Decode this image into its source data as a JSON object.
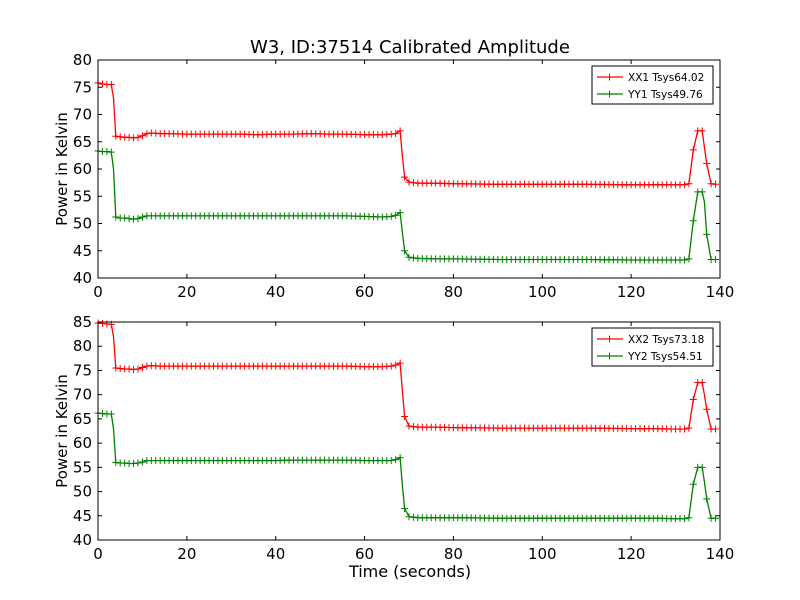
{
  "figure_title": "W3, ID:37514 Calibrated Amplitude",
  "xlabel_bottom": "Time (seconds)",
  "colors": {
    "xx": "#ff0000",
    "yy": "#008000"
  },
  "chart_data": [
    {
      "type": "line",
      "title": "W3, ID:37514 Calibrated Amplitude",
      "xlabel": "",
      "ylabel": "Power in Kelvin",
      "xlim": [
        0,
        140
      ],
      "ylim": [
        40,
        80
      ],
      "xticks": [
        0,
        20,
        40,
        60,
        80,
        100,
        120,
        140
      ],
      "yticks": [
        40,
        45,
        50,
        55,
        60,
        65,
        70,
        75,
        80
      ],
      "grid": false,
      "legend_position": "top-right",
      "series": [
        {
          "name": "XX1 Tsys64.02",
          "color": "#ff0000",
          "x": [
            0,
            1,
            2,
            3,
            3.5,
            4,
            5,
            6,
            7,
            8,
            9,
            10,
            11,
            12,
            14,
            16,
            20,
            24,
            28,
            32,
            36,
            40,
            44,
            48,
            52,
            56,
            60,
            64,
            66,
            67,
            68,
            68.5,
            69,
            70,
            72,
            76,
            80,
            90,
            100,
            110,
            120,
            125,
            130,
            132,
            133,
            134,
            135,
            136,
            136.5,
            137,
            138,
            139
          ],
          "y": [
            75.8,
            75.6,
            75.5,
            75.5,
            73,
            66,
            65.9,
            65.8,
            65.8,
            65.7,
            65.8,
            66.1,
            66.5,
            66.6,
            66.5,
            66.5,
            66.4,
            66.4,
            66.4,
            66.4,
            66.3,
            66.4,
            66.4,
            66.5,
            66.4,
            66.4,
            66.3,
            66.3,
            66.4,
            66.5,
            67,
            62.5,
            58.5,
            57.6,
            57.4,
            57.4,
            57.3,
            57.2,
            57.2,
            57.2,
            57.1,
            57.1,
            57.1,
            57.1,
            57.3,
            63.5,
            67,
            67,
            64,
            61,
            57.3,
            57.2
          ]
        },
        {
          "name": "YY1 Tsys49.76",
          "color": "#008000",
          "x": [
            0,
            1,
            2,
            3,
            3.5,
            4,
            5,
            6,
            7,
            8,
            9,
            10,
            11,
            12,
            14,
            16,
            20,
            24,
            28,
            32,
            36,
            40,
            44,
            48,
            52,
            56,
            60,
            64,
            66,
            67,
            68,
            68.5,
            69,
            70,
            72,
            76,
            80,
            90,
            100,
            110,
            120,
            125,
            130,
            132,
            133,
            134,
            135,
            136,
            136.5,
            137,
            138,
            139
          ],
          "y": [
            63.3,
            63.2,
            63.2,
            63.1,
            60,
            51.2,
            51,
            51,
            50.9,
            50.8,
            50.9,
            51.2,
            51.4,
            51.4,
            51.4,
            51.4,
            51.4,
            51.4,
            51.4,
            51.4,
            51.4,
            51.4,
            51.4,
            51.4,
            51.4,
            51.4,
            51.3,
            51.2,
            51.3,
            51.5,
            52,
            48.5,
            45,
            43.8,
            43.6,
            43.5,
            43.5,
            43.4,
            43.4,
            43.4,
            43.3,
            43.3,
            43.3,
            43.3,
            43.5,
            50.5,
            55.8,
            55.8,
            54,
            48,
            43.4,
            43.4
          ]
        }
      ]
    },
    {
      "type": "line",
      "title": "",
      "xlabel": "Time (seconds)",
      "ylabel": "Power in Kelvin",
      "xlim": [
        0,
        140
      ],
      "ylim": [
        40,
        85
      ],
      "xticks": [
        0,
        20,
        40,
        60,
        80,
        100,
        120,
        140
      ],
      "yticks": [
        40,
        45,
        50,
        55,
        60,
        65,
        70,
        75,
        80,
        85
      ],
      "grid": false,
      "legend_position": "top-right",
      "series": [
        {
          "name": "XX2 Tsys73.18",
          "color": "#ff0000",
          "x": [
            0,
            1,
            2,
            3,
            3.5,
            4,
            5,
            6,
            7,
            8,
            9,
            10,
            11,
            12,
            14,
            16,
            20,
            24,
            28,
            32,
            36,
            40,
            44,
            48,
            52,
            56,
            60,
            64,
            66,
            67,
            68,
            68.5,
            69,
            70,
            72,
            76,
            80,
            90,
            100,
            110,
            120,
            125,
            130,
            132,
            133,
            134,
            135,
            136,
            136.5,
            137,
            138,
            139
          ],
          "y": [
            84.8,
            84.7,
            84.6,
            84.5,
            82,
            75.5,
            75.4,
            75.3,
            75.3,
            75.2,
            75.3,
            75.6,
            75.9,
            76,
            75.9,
            75.9,
            75.9,
            75.9,
            75.9,
            75.9,
            75.9,
            75.9,
            75.9,
            75.9,
            75.9,
            75.9,
            75.8,
            75.8,
            75.9,
            76.1,
            76.5,
            71,
            65.5,
            63.5,
            63.3,
            63.3,
            63.2,
            63.1,
            63.1,
            63.1,
            63,
            63,
            62.9,
            62.9,
            63.1,
            69,
            72.5,
            72.5,
            70,
            67,
            62.9,
            62.9
          ]
        },
        {
          "name": "YY2 Tsys54.51",
          "color": "#008000",
          "x": [
            0,
            1,
            2,
            3,
            3.5,
            4,
            5,
            6,
            7,
            8,
            9,
            10,
            11,
            12,
            14,
            16,
            20,
            24,
            28,
            32,
            36,
            40,
            44,
            48,
            52,
            56,
            60,
            64,
            66,
            67,
            68,
            68.5,
            69,
            70,
            72,
            76,
            80,
            90,
            100,
            110,
            120,
            125,
            130,
            132,
            133,
            134,
            135,
            136,
            136.5,
            137,
            138,
            139
          ],
          "y": [
            66.2,
            66.1,
            66,
            66,
            63,
            56,
            55.9,
            55.9,
            55.8,
            55.8,
            55.9,
            56.1,
            56.4,
            56.4,
            56.4,
            56.4,
            56.4,
            56.4,
            56.4,
            56.4,
            56.4,
            56.4,
            56.5,
            56.5,
            56.5,
            56.5,
            56.4,
            56.4,
            56.4,
            56.6,
            57,
            51.5,
            46.5,
            44.8,
            44.6,
            44.6,
            44.6,
            44.5,
            44.5,
            44.5,
            44.5,
            44.5,
            44.4,
            44.4,
            44.6,
            51.5,
            55,
            55,
            52,
            48.5,
            44.5,
            44.5
          ]
        }
      ]
    }
  ]
}
